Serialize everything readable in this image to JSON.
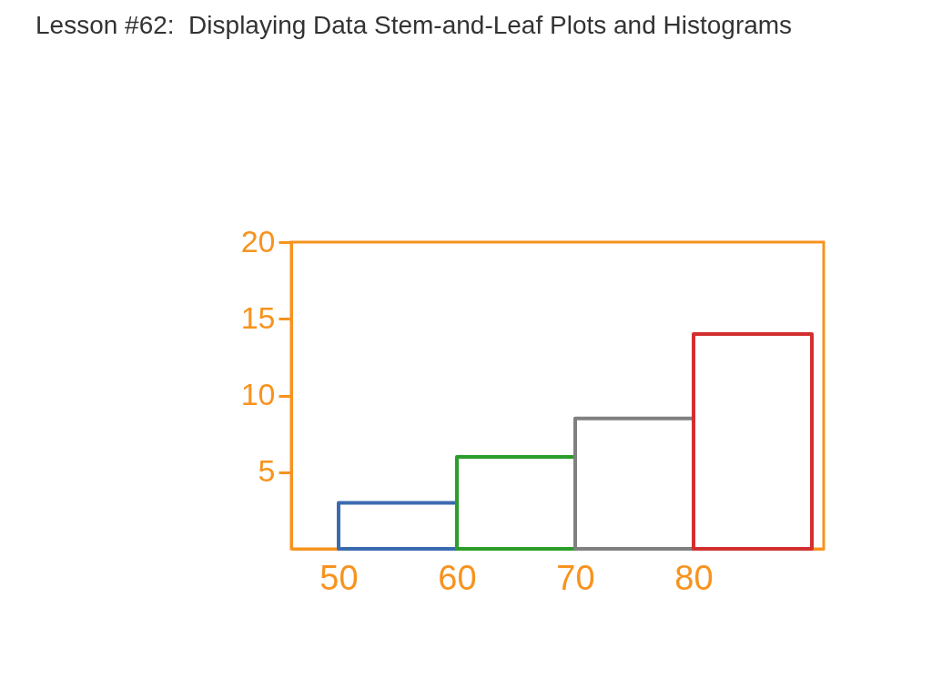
{
  "chart_data": {
    "type": "histogram",
    "title": "Lesson #62:  Displaying Data Stem-and-Leaf Plots and Histograms",
    "bins": [
      50,
      60,
      70,
      80,
      90
    ],
    "values": [
      3,
      6,
      8.5,
      14
    ],
    "colors": [
      "#3a6bb0",
      "#2a9d2a",
      "#808080",
      "#d22f2f"
    ],
    "xlim": [
      46,
      91
    ],
    "xticks": [
      50,
      60,
      70,
      80
    ],
    "ylim": [
      0,
      20
    ],
    "yticks": [
      5,
      10,
      15,
      20
    ]
  }
}
